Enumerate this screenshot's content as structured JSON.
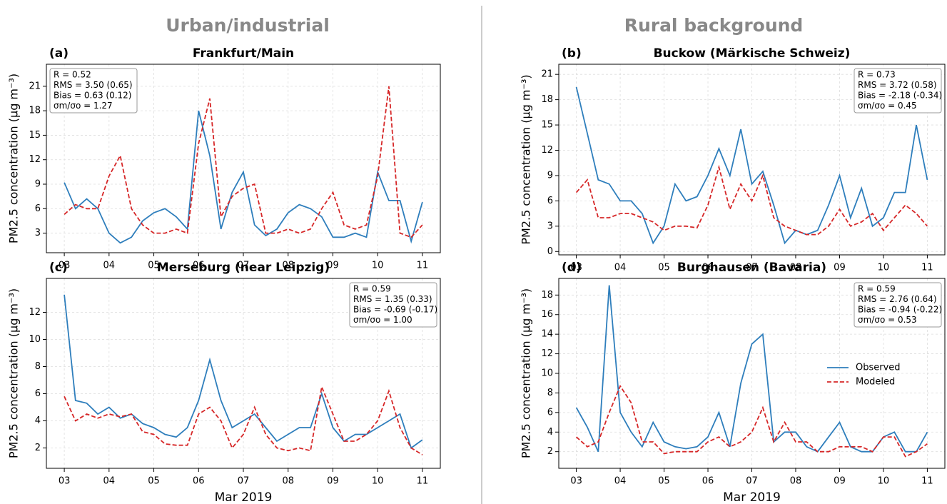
{
  "column_headings": [
    "Urban/industrial",
    "Rural background"
  ],
  "chart_data": [
    {
      "type": "line",
      "label": "(a)",
      "title": "Frankfurt/Main",
      "ylabel": "PM2.5 concentration (μg m⁻³)",
      "stats": [
        "R = 0.52",
        "RMS = 3.50 (0.65)",
        "Bias = 0.63 (0.12)",
        "σm/σo = 1.27"
      ],
      "stats_corner": "upper left",
      "x": [
        3,
        3.25,
        3.5,
        3.75,
        4,
        4.25,
        4.5,
        4.75,
        5,
        5.25,
        5.5,
        5.75,
        6,
        6.25,
        6.5,
        6.75,
        7,
        7.25,
        7.5,
        7.75,
        8,
        8.25,
        8.5,
        8.75,
        9,
        9.25,
        9.5,
        9.75,
        10,
        10.25,
        10.5,
        10.75,
        11
      ],
      "xlim": [
        2.6,
        11.4
      ],
      "xticks": [
        {
          "value": 3,
          "label": "03"
        },
        {
          "value": 4,
          "label": "04"
        },
        {
          "value": 5,
          "label": "05"
        },
        {
          "value": 6,
          "label": "06"
        },
        {
          "value": 7,
          "label": "07"
        },
        {
          "value": 8,
          "label": "08"
        },
        {
          "value": 9,
          "label": "09"
        },
        {
          "value": 10,
          "label": "10"
        },
        {
          "value": 11,
          "label": "11"
        }
      ],
      "ylim": [
        0.6,
        23.7
      ],
      "yticks": [
        3,
        6,
        9,
        12,
        15,
        18,
        21
      ],
      "grid": true,
      "series": [
        {
          "name": "Observed",
          "color": "#2e7ebc",
          "dash": false,
          "values": [
            9.2,
            6.0,
            7.2,
            6.0,
            3.0,
            1.8,
            2.5,
            4.5,
            5.5,
            6.0,
            5.0,
            3.5,
            18,
            12.5,
            3.5,
            8,
            10.5,
            4,
            2.7,
            3.5,
            5.5,
            6.5,
            6,
            5,
            2.5,
            2.5,
            3,
            2.5,
            10.5,
            7,
            7,
            2,
            6.8
          ]
        },
        {
          "name": "Modeled",
          "color": "#d62728",
          "dash": true,
          "values": [
            5.3,
            6.5,
            6.0,
            6.0,
            10.0,
            12.5,
            6.0,
            4.0,
            3.0,
            3.0,
            3.5,
            3.0,
            14,
            19.5,
            5.0,
            7.5,
            8.5,
            9.0,
            3.0,
            3.0,
            3.5,
            3.0,
            3.5,
            6.0,
            8.0,
            4.0,
            3.5,
            4.0,
            10.0,
            21,
            3.0,
            2.5,
            4.0
          ]
        }
      ]
    },
    {
      "type": "line",
      "label": "(b)",
      "title": "Buckow (Märkische Schweiz)",
      "ylabel": "PM2.5 concentration (μg m⁻³)",
      "stats": [
        "R = 0.73",
        "RMS = 3.72 (0.58)",
        "Bias = -2.18 (-0.34)",
        "σm/σo = 0.45"
      ],
      "stats_corner": "upper right",
      "x": [
        3,
        3.25,
        3.5,
        3.75,
        4,
        4.25,
        4.5,
        4.75,
        5,
        5.25,
        5.5,
        5.75,
        6,
        6.25,
        6.5,
        6.75,
        7,
        7.25,
        7.5,
        7.75,
        8,
        8.25,
        8.5,
        8.75,
        9,
        9.25,
        9.5,
        9.75,
        10,
        10.25,
        10.5,
        10.75,
        11
      ],
      "xlim": [
        2.6,
        11.4
      ],
      "xticks": [
        {
          "value": 3,
          "label": "03"
        },
        {
          "value": 4,
          "label": "04"
        },
        {
          "value": 5,
          "label": "05"
        },
        {
          "value": 6,
          "label": "06"
        },
        {
          "value": 7,
          "label": "07"
        },
        {
          "value": 8,
          "label": "08"
        },
        {
          "value": 9,
          "label": "09"
        },
        {
          "value": 10,
          "label": "10"
        },
        {
          "value": 11,
          "label": "11"
        }
      ],
      "ylim": [
        -0.4,
        22.2
      ],
      "yticks": [
        0,
        3,
        6,
        9,
        12,
        15,
        18,
        21
      ],
      "grid": true,
      "series": [
        {
          "name": "Observed",
          "color": "#2e7ebc",
          "dash": false,
          "values": [
            19.5,
            14,
            8.5,
            8.0,
            6.0,
            6.0,
            4.5,
            1.0,
            3.0,
            8.0,
            6.0,
            6.5,
            9.0,
            12.2,
            9.0,
            14.5,
            8.0,
            9.5,
            5.5,
            1.0,
            2.5,
            2.0,
            2.5,
            5.5,
            9.0,
            4.0,
            7.5,
            3.0,
            4.0,
            7.0,
            7.0,
            15.0,
            8.5
          ]
        },
        {
          "name": "Modeled",
          "color": "#d62728",
          "dash": true,
          "values": [
            7.0,
            8.5,
            4.0,
            4.0,
            4.5,
            4.5,
            4.0,
            3.5,
            2.5,
            3.0,
            3.0,
            2.8,
            5.5,
            10.0,
            5.0,
            8.0,
            6.0,
            9.0,
            4.0,
            3.0,
            2.5,
            2.0,
            2.0,
            3.0,
            5.0,
            3.0,
            3.5,
            4.5,
            2.5,
            4.0,
            5.5,
            4.5,
            3.0
          ]
        }
      ]
    },
    {
      "type": "line",
      "label": "(c)",
      "title": "Merseburg (near Leipzig)",
      "ylabel": "PM2.5 concentration (μg m⁻³)",
      "xlabel": "Mar 2019",
      "stats": [
        "R = 0.59",
        "RMS = 1.35 (0.33)",
        "Bias = -0.69 (-0.17)",
        "σm/σo = 1.00"
      ],
      "stats_corner": "upper right",
      "x": [
        3,
        3.25,
        3.5,
        3.75,
        4,
        4.25,
        4.5,
        4.75,
        5,
        5.25,
        5.5,
        5.75,
        6,
        6.25,
        6.5,
        6.75,
        7,
        7.25,
        7.5,
        7.75,
        8,
        8.25,
        8.5,
        8.75,
        9,
        9.25,
        9.5,
        9.75,
        10,
        10.25,
        10.5,
        10.75,
        11
      ],
      "xlim": [
        2.6,
        11.4
      ],
      "xticks": [
        {
          "value": 3,
          "label": "03"
        },
        {
          "value": 4,
          "label": "04"
        },
        {
          "value": 5,
          "label": "05"
        },
        {
          "value": 6,
          "label": "06"
        },
        {
          "value": 7,
          "label": "07"
        },
        {
          "value": 8,
          "label": "08"
        },
        {
          "value": 9,
          "label": "09"
        },
        {
          "value": 10,
          "label": "10"
        },
        {
          "value": 11,
          "label": "11"
        }
      ],
      "ylim": [
        0.5,
        14.5
      ],
      "yticks": [
        2,
        4,
        6,
        8,
        10,
        12
      ],
      "grid": true,
      "series": [
        {
          "name": "Observed",
          "color": "#2e7ebc",
          "dash": false,
          "values": [
            13.3,
            5.5,
            5.3,
            4.5,
            5.0,
            4.2,
            4.5,
            3.8,
            3.5,
            3.0,
            2.8,
            3.5,
            5.5,
            8.5,
            5.5,
            3.5,
            4.0,
            4.5,
            3.5,
            2.5,
            3.0,
            3.5,
            3.5,
            6.0,
            3.5,
            2.5,
            3.0,
            3.0,
            3.5,
            4.0,
            4.5,
            2.0,
            2.6
          ]
        },
        {
          "name": "Modeled",
          "color": "#d62728",
          "dash": true,
          "values": [
            5.8,
            4.0,
            4.5,
            4.2,
            4.5,
            4.3,
            4.5,
            3.2,
            3.0,
            2.3,
            2.2,
            2.2,
            4.5,
            5.0,
            4.0,
            2.0,
            3.0,
            5.0,
            3.0,
            2.0,
            1.8,
            2.0,
            1.8,
            6.5,
            4.5,
            2.5,
            2.5,
            3.0,
            4.0,
            6.2,
            3.5,
            2.0,
            1.5
          ]
        }
      ]
    },
    {
      "type": "line",
      "label": "(d)",
      "title": "Burghausen (Bavaria)",
      "ylabel": "PM2.5 concentration (μg m⁻³)",
      "xlabel": "Mar 2019",
      "stats": [
        "R = 0.59",
        "RMS = 2.76 (0.64)",
        "Bias = -0.94 (-0.22)",
        "σm/σo = 0.53"
      ],
      "stats_corner": "upper right",
      "legend": "center right",
      "x": [
        3,
        3.25,
        3.5,
        3.75,
        4,
        4.25,
        4.5,
        4.75,
        5,
        5.25,
        5.5,
        5.75,
        6,
        6.25,
        6.5,
        6.75,
        7,
        7.25,
        7.5,
        7.75,
        8,
        8.25,
        8.5,
        8.75,
        9,
        9.25,
        9.5,
        9.75,
        10,
        10.25,
        10.5,
        10.75,
        11
      ],
      "xlim": [
        2.6,
        11.4
      ],
      "xticks": [
        {
          "value": 3,
          "label": "03"
        },
        {
          "value": 4,
          "label": "04"
        },
        {
          "value": 5,
          "label": "05"
        },
        {
          "value": 6,
          "label": "06"
        },
        {
          "value": 7,
          "label": "07"
        },
        {
          "value": 8,
          "label": "08"
        },
        {
          "value": 9,
          "label": "09"
        },
        {
          "value": 10,
          "label": "10"
        },
        {
          "value": 11,
          "label": "11"
        }
      ],
      "ylim": [
        0.3,
        19.7
      ],
      "yticks": [
        2,
        4,
        6,
        8,
        10,
        12,
        14,
        16,
        18
      ],
      "grid": true,
      "series": [
        {
          "name": "Observed",
          "color": "#2e7ebc",
          "dash": false,
          "values": [
            6.5,
            4.5,
            2.0,
            19.0,
            6.0,
            4.0,
            2.5,
            5.0,
            3.0,
            2.5,
            2.3,
            2.5,
            3.5,
            6.0,
            2.5,
            9.0,
            13.0,
            14.0,
            3.0,
            4.0,
            4.0,
            2.5,
            2.0,
            3.5,
            5.0,
            2.5,
            2.0,
            2.0,
            3.5,
            4.0,
            2.0,
            2.0,
            4.0
          ]
        },
        {
          "name": "Modeled",
          "color": "#d62728",
          "dash": true,
          "values": [
            3.5,
            2.5,
            3.0,
            6.0,
            8.7,
            7.0,
            3.0,
            3.0,
            1.8,
            2.0,
            2.0,
            2.0,
            3.0,
            3.5,
            2.5,
            3.0,
            4.0,
            6.5,
            3.0,
            5.0,
            3.0,
            3.0,
            2.0,
            2.0,
            2.5,
            2.5,
            2.5,
            2.0,
            3.5,
            3.5,
            1.5,
            2.0,
            2.8
          ]
        }
      ]
    }
  ]
}
